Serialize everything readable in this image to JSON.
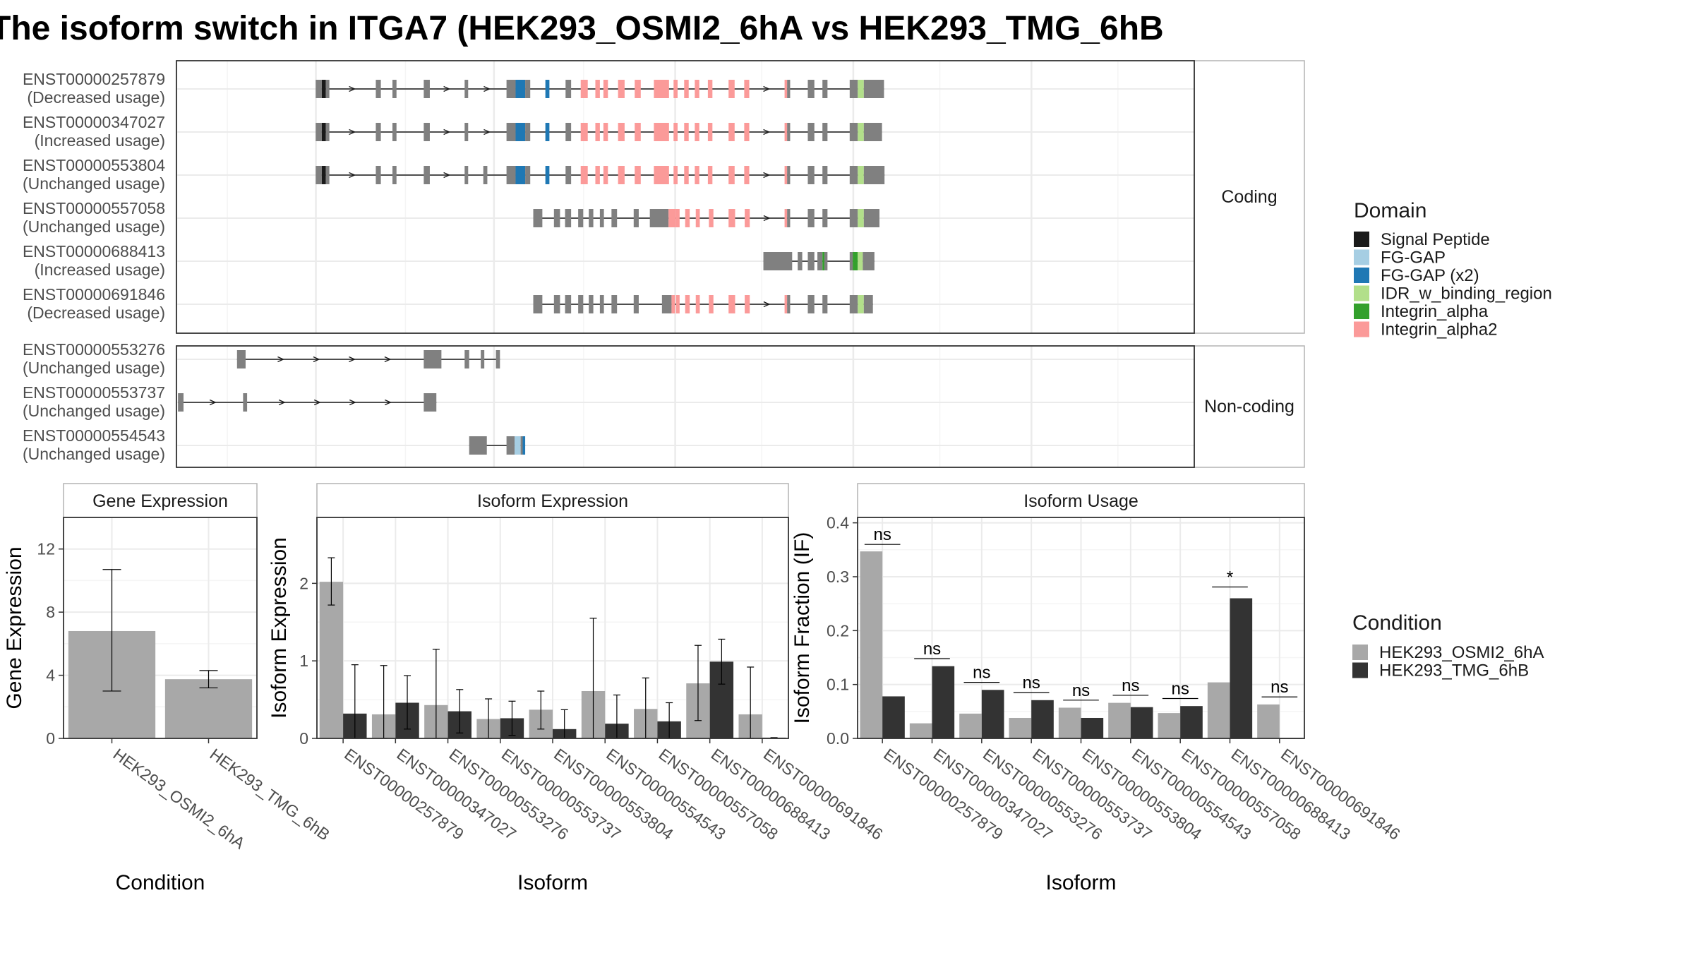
{
  "title": "The isoform switch in ITGA7 (HEK293_OSMI2_6hA vs HEK293_TMG_6hB",
  "colors": {
    "panel_border": "#333333",
    "strip_border": "#b3b3b3",
    "grid_major": "#ebebeb",
    "grid_minor": "#f5f5f5",
    "exon_grey": "#808080",
    "cond_a": "#a8a8a8",
    "cond_b": "#333333"
  },
  "structure": {
    "facets": {
      "coding": "Coding",
      "noncoding": "Non-coding"
    },
    "legend": {
      "title": "Domain",
      "items": [
        {
          "label": "Signal Peptide",
          "color": "#1a1a1a"
        },
        {
          "label": "FG-GAP",
          "color": "#a6cee3"
        },
        {
          "label": "FG-GAP (x2)",
          "color": "#1f78b4"
        },
        {
          "label": "IDR_w_binding_region",
          "color": "#b2df8a"
        },
        {
          "label": "Integrin_alpha",
          "color": "#33a02c"
        },
        {
          "label": "Integrin_alpha2",
          "color": "#fb9a99"
        }
      ]
    },
    "coding": [
      {
        "id": "ENST00000257879",
        "usage": "(Decreased usage)",
        "exons": [
          [
            0.276,
            0.288
          ],
          [
            0.288,
            0.296,
            "#1a1a1a"
          ],
          [
            0.296,
            0.303
          ],
          [
            0.395,
            0.405
          ],
          [
            0.428,
            0.436
          ],
          [
            0.49,
            0.502
          ],
          [
            0.571,
            0.578
          ],
          [
            0.654,
            0.672
          ],
          [
            0.672,
            0.691,
            "#1f78b4"
          ],
          [
            0.691,
            0.701
          ],
          [
            0.731,
            0.739,
            "#1f78b4"
          ],
          [
            0.771,
            0.782
          ],
          [
            0.801,
            0.815,
            "#fb9a99"
          ],
          [
            0.83,
            0.839,
            "#fb9a99"
          ],
          [
            0.846,
            0.855,
            "#fb9a99"
          ],
          [
            0.875,
            0.888,
            "#fb9a99"
          ],
          [
            0.908,
            0.92,
            "#fb9a99"
          ],
          [
            0.946,
            0.976,
            "#fb9a99"
          ],
          [
            0.985,
            0.993,
            "#fb9a99"
          ],
          [
            1.006,
            1.015,
            "#fb9a99"
          ],
          [
            1.027,
            1.036,
            "#fb9a99"
          ],
          [
            1.053,
            1.062,
            "#fb9a99"
          ],
          [
            1.094,
            1.106,
            "#fb9a99"
          ],
          [
            1.125,
            1.135,
            "#fb9a99"
          ],
          [
            1.205,
            1.21,
            "#fb9a99"
          ],
          [
            1.21,
            1.216
          ],
          [
            1.251,
            1.264
          ],
          [
            1.28,
            1.29
          ],
          [
            1.334,
            1.35
          ],
          [
            1.35,
            1.362,
            "#b2df8a"
          ],
          [
            1.362,
            1.402
          ]
        ]
      },
      {
        "id": "ENST00000347027",
        "usage": "(Increased usage)",
        "exons": [
          [
            0.276,
            0.288
          ],
          [
            0.288,
            0.296,
            "#1a1a1a"
          ],
          [
            0.296,
            0.303
          ],
          [
            0.395,
            0.405
          ],
          [
            0.428,
            0.436
          ],
          [
            0.49,
            0.502
          ],
          [
            0.571,
            0.578
          ],
          [
            0.654,
            0.672
          ],
          [
            0.672,
            0.691,
            "#1f78b4"
          ],
          [
            0.691,
            0.701
          ],
          [
            0.731,
            0.739,
            "#1f78b4"
          ],
          [
            0.771,
            0.782
          ],
          [
            0.801,
            0.815,
            "#fb9a99"
          ],
          [
            0.83,
            0.839,
            "#fb9a99"
          ],
          [
            0.846,
            0.855,
            "#fb9a99"
          ],
          [
            0.875,
            0.888,
            "#fb9a99"
          ],
          [
            0.908,
            0.92,
            "#fb9a99"
          ],
          [
            0.946,
            0.976,
            "#fb9a99"
          ],
          [
            0.985,
            0.993,
            "#fb9a99"
          ],
          [
            1.006,
            1.015,
            "#fb9a99"
          ],
          [
            1.027,
            1.036,
            "#fb9a99"
          ],
          [
            1.053,
            1.062,
            "#fb9a99"
          ],
          [
            1.094,
            1.106,
            "#fb9a99"
          ],
          [
            1.125,
            1.135,
            "#fb9a99"
          ],
          [
            1.205,
            1.21,
            "#fb9a99"
          ],
          [
            1.21,
            1.216
          ],
          [
            1.251,
            1.264
          ],
          [
            1.28,
            1.29
          ],
          [
            1.334,
            1.35
          ],
          [
            1.35,
            1.362,
            "#b2df8a"
          ],
          [
            1.362,
            1.398
          ]
        ]
      },
      {
        "id": "ENST00000553804",
        "usage": "(Unchanged usage)",
        "exons": [
          [
            0.276,
            0.288
          ],
          [
            0.288,
            0.296,
            "#1a1a1a"
          ],
          [
            0.296,
            0.303
          ],
          [
            0.395,
            0.405
          ],
          [
            0.428,
            0.436
          ],
          [
            0.49,
            0.502
          ],
          [
            0.571,
            0.578
          ],
          [
            0.608,
            0.616
          ],
          [
            0.654,
            0.672
          ],
          [
            0.672,
            0.691,
            "#1f78b4"
          ],
          [
            0.691,
            0.701
          ],
          [
            0.731,
            0.739,
            "#1f78b4"
          ],
          [
            0.771,
            0.782
          ],
          [
            0.801,
            0.815,
            "#fb9a99"
          ],
          [
            0.83,
            0.839,
            "#fb9a99"
          ],
          [
            0.846,
            0.855,
            "#fb9a99"
          ],
          [
            0.875,
            0.888,
            "#fb9a99"
          ],
          [
            0.908,
            0.92,
            "#fb9a99"
          ],
          [
            0.946,
            0.976,
            "#fb9a99"
          ],
          [
            0.985,
            0.993,
            "#fb9a99"
          ],
          [
            1.006,
            1.015,
            "#fb9a99"
          ],
          [
            1.027,
            1.036,
            "#fb9a99"
          ],
          [
            1.053,
            1.062,
            "#fb9a99"
          ],
          [
            1.094,
            1.106,
            "#fb9a99"
          ],
          [
            1.125,
            1.135,
            "#fb9a99"
          ],
          [
            1.205,
            1.21,
            "#fb9a99"
          ],
          [
            1.21,
            1.216
          ],
          [
            1.251,
            1.264
          ],
          [
            1.28,
            1.29
          ],
          [
            1.334,
            1.35
          ],
          [
            1.35,
            1.362,
            "#b2df8a"
          ],
          [
            1.362,
            1.403
          ]
        ]
      },
      {
        "id": "ENST00000557058",
        "usage": "(Unchanged usage)",
        "exons": [
          [
            0.707,
            0.725
          ],
          [
            0.748,
            0.76
          ],
          [
            0.77,
            0.782
          ],
          [
            0.796,
            0.806
          ],
          [
            0.817,
            0.826
          ],
          [
            0.839,
            0.847
          ],
          [
            0.862,
            0.873
          ],
          [
            0.906,
            0.916
          ],
          [
            0.938,
            0.975
          ],
          [
            0.975,
            0.99,
            "#fb9a99"
          ],
          [
            0.99,
            0.997,
            "#fb9a99"
          ],
          [
            1.008,
            1.017,
            "#fb9a99"
          ],
          [
            1.029,
            1.037,
            "#fb9a99"
          ],
          [
            1.055,
            1.064,
            "#fb9a99"
          ],
          [
            1.094,
            1.107,
            "#fb9a99"
          ],
          [
            1.126,
            1.136,
            "#fb9a99"
          ],
          [
            1.205,
            1.21,
            "#fb9a99"
          ],
          [
            1.21,
            1.216
          ],
          [
            1.251,
            1.264
          ],
          [
            1.28,
            1.29
          ],
          [
            1.334,
            1.35
          ],
          [
            1.35,
            1.362,
            "#b2df8a"
          ],
          [
            1.362,
            1.393
          ]
        ]
      },
      {
        "id": "ENST00000688413",
        "usage": "(Increased usage)",
        "exons": [
          [
            1.163,
            1.22
          ],
          [
            1.231,
            1.24
          ],
          [
            1.251,
            1.264
          ],
          [
            1.27,
            1.28
          ],
          [
            1.28,
            1.284,
            "#33a02c"
          ],
          [
            1.284,
            1.29
          ],
          [
            1.334,
            1.34
          ],
          [
            1.34,
            1.35,
            "#33a02c"
          ],
          [
            1.35,
            1.36,
            "#b2df8a"
          ],
          [
            1.36,
            1.383
          ]
        ]
      },
      {
        "id": "ENST00000691846",
        "usage": "(Decreased usage)",
        "exons": [
          [
            0.707,
            0.725
          ],
          [
            0.748,
            0.76
          ],
          [
            0.77,
            0.782
          ],
          [
            0.796,
            0.806
          ],
          [
            0.817,
            0.826
          ],
          [
            0.839,
            0.847
          ],
          [
            0.862,
            0.873
          ],
          [
            0.906,
            0.916
          ],
          [
            0.962,
            0.981
          ],
          [
            0.981,
            0.988,
            "#fb9a99"
          ],
          [
            0.99,
            0.997,
            "#fb9a99"
          ],
          [
            1.008,
            1.017,
            "#fb9a99"
          ],
          [
            1.029,
            1.037,
            "#fb9a99"
          ],
          [
            1.055,
            1.064,
            "#fb9a99"
          ],
          [
            1.094,
            1.107,
            "#fb9a99"
          ],
          [
            1.126,
            1.136,
            "#fb9a99"
          ],
          [
            1.205,
            1.21,
            "#fb9a99"
          ],
          [
            1.21,
            1.216
          ],
          [
            1.251,
            1.264
          ],
          [
            1.28,
            1.29
          ],
          [
            1.334,
            1.35
          ],
          [
            1.35,
            1.362,
            "#b2df8a"
          ],
          [
            1.362,
            1.38
          ]
        ]
      }
    ],
    "noncoding": [
      {
        "id": "ENST00000553276",
        "usage": "(Unchanged usage)",
        "exons": [
          [
            0.12,
            0.137
          ],
          [
            0.49,
            0.525
          ],
          [
            0.571,
            0.58
          ],
          [
            0.603,
            0.61
          ],
          [
            0.633,
            0.641
          ]
        ]
      },
      {
        "id": "ENST00000553737",
        "usage": "(Unchanged usage)",
        "exons": [
          [
            0.003,
            0.014
          ],
          [
            0.132,
            0.14
          ],
          [
            0.49,
            0.515
          ]
        ]
      },
      {
        "id": "ENST00000554543",
        "usage": "(Unchanged usage)",
        "exons": [
          [
            0.58,
            0.6
          ],
          [
            0.6,
            0.615
          ],
          [
            0.654,
            0.67
          ],
          [
            0.67,
            0.682,
            "#a6cee3"
          ],
          [
            0.682,
            0.686
          ],
          [
            0.686,
            0.691,
            "#1f78b4"
          ]
        ]
      }
    ]
  },
  "chart_data": [
    {
      "type": "bar",
      "title": "Gene Expression",
      "xlabel": "Condition",
      "ylabel": "Gene Expression",
      "ylim": [
        0,
        14
      ],
      "yticks": [
        0,
        4,
        8,
        12
      ],
      "categories": [
        "HEK293_OSMI2_6hA",
        "HEK293_TMG_6hB"
      ],
      "values": [
        6.8,
        3.75
      ],
      "error_low": [
        3.0,
        3.2
      ],
      "error_high": [
        10.7,
        4.3
      ]
    },
    {
      "type": "bar",
      "title": "Isoform Expression",
      "xlabel": "Isoform",
      "ylabel": "Isoform Expression",
      "ylim": [
        0,
        2.85
      ],
      "yticks": [
        0,
        1,
        2
      ],
      "categories": [
        "ENST00000257879",
        "ENST00000347027",
        "ENST00000553276",
        "ENST00000553737",
        "ENST00000553804",
        "ENST00000554543",
        "ENST00000557058",
        "ENST00000688413",
        "ENST00000691846"
      ],
      "series": [
        {
          "name": "HEK293_OSMI2_6hA",
          "values": [
            2.02,
            0.31,
            0.43,
            0.25,
            0.37,
            0.61,
            0.38,
            0.71,
            0.31
          ],
          "error_low": [
            1.72,
            0.0,
            0.0,
            0.0,
            0.12,
            0.0,
            0.0,
            0.23,
            0.0
          ],
          "error_high": [
            2.33,
            0.94,
            1.15,
            0.51,
            0.61,
            1.55,
            0.78,
            1.2,
            0.92
          ]
        },
        {
          "name": "HEK293_TMG_6hB",
          "values": [
            0.32,
            0.46,
            0.35,
            0.26,
            0.12,
            0.19,
            0.22,
            0.99,
            0.01
          ],
          "error_low": [
            0.0,
            0.12,
            0.07,
            0.04,
            0.0,
            0.0,
            0.0,
            0.7,
            0.0
          ],
          "error_high": [
            0.95,
            0.81,
            0.63,
            0.48,
            0.37,
            0.56,
            0.46,
            1.28,
            0.01
          ]
        }
      ]
    },
    {
      "type": "bar",
      "title": "Isoform Usage",
      "xlabel": "Isoform",
      "ylabel": "Isoform Fraction (IF)",
      "ylim": [
        0,
        0.41
      ],
      "yticks": [
        0.0,
        0.1,
        0.2,
        0.3,
        0.4
      ],
      "categories": [
        "ENST00000257879",
        "ENST00000347027",
        "ENST00000553276",
        "ENST00000553737",
        "ENST00000553804",
        "ENST00000554543",
        "ENST00000557058",
        "ENST00000688413",
        "ENST00000691846"
      ],
      "series": [
        {
          "name": "HEK293_OSMI2_6hA",
          "values": [
            0.347,
            0.028,
            0.046,
            0.038,
            0.057,
            0.066,
            0.047,
            0.104,
            0.063
          ]
        },
        {
          "name": "HEK293_TMG_6hB",
          "values": [
            0.078,
            0.134,
            0.09,
            0.071,
            0.038,
            0.058,
            0.06,
            0.26,
            0.0
          ]
        }
      ],
      "annotations": [
        {
          "category": 0,
          "label": "ns",
          "y": 0.36
        },
        {
          "category": 1,
          "label": "ns",
          "y": 0.148
        },
        {
          "category": 2,
          "label": "ns",
          "y": 0.104
        },
        {
          "category": 3,
          "label": "ns",
          "y": 0.085
        },
        {
          "category": 4,
          "label": "ns",
          "y": 0.071
        },
        {
          "category": 5,
          "label": "ns",
          "y": 0.08
        },
        {
          "category": 6,
          "label": "ns",
          "y": 0.074
        },
        {
          "category": 7,
          "label": "*",
          "y": 0.281
        },
        {
          "category": 8,
          "label": "ns",
          "y": 0.077
        }
      ]
    }
  ],
  "condition_legend": {
    "title": "Condition",
    "items": [
      "HEK293_OSMI2_6hA",
      "HEK293_TMG_6hB"
    ]
  }
}
